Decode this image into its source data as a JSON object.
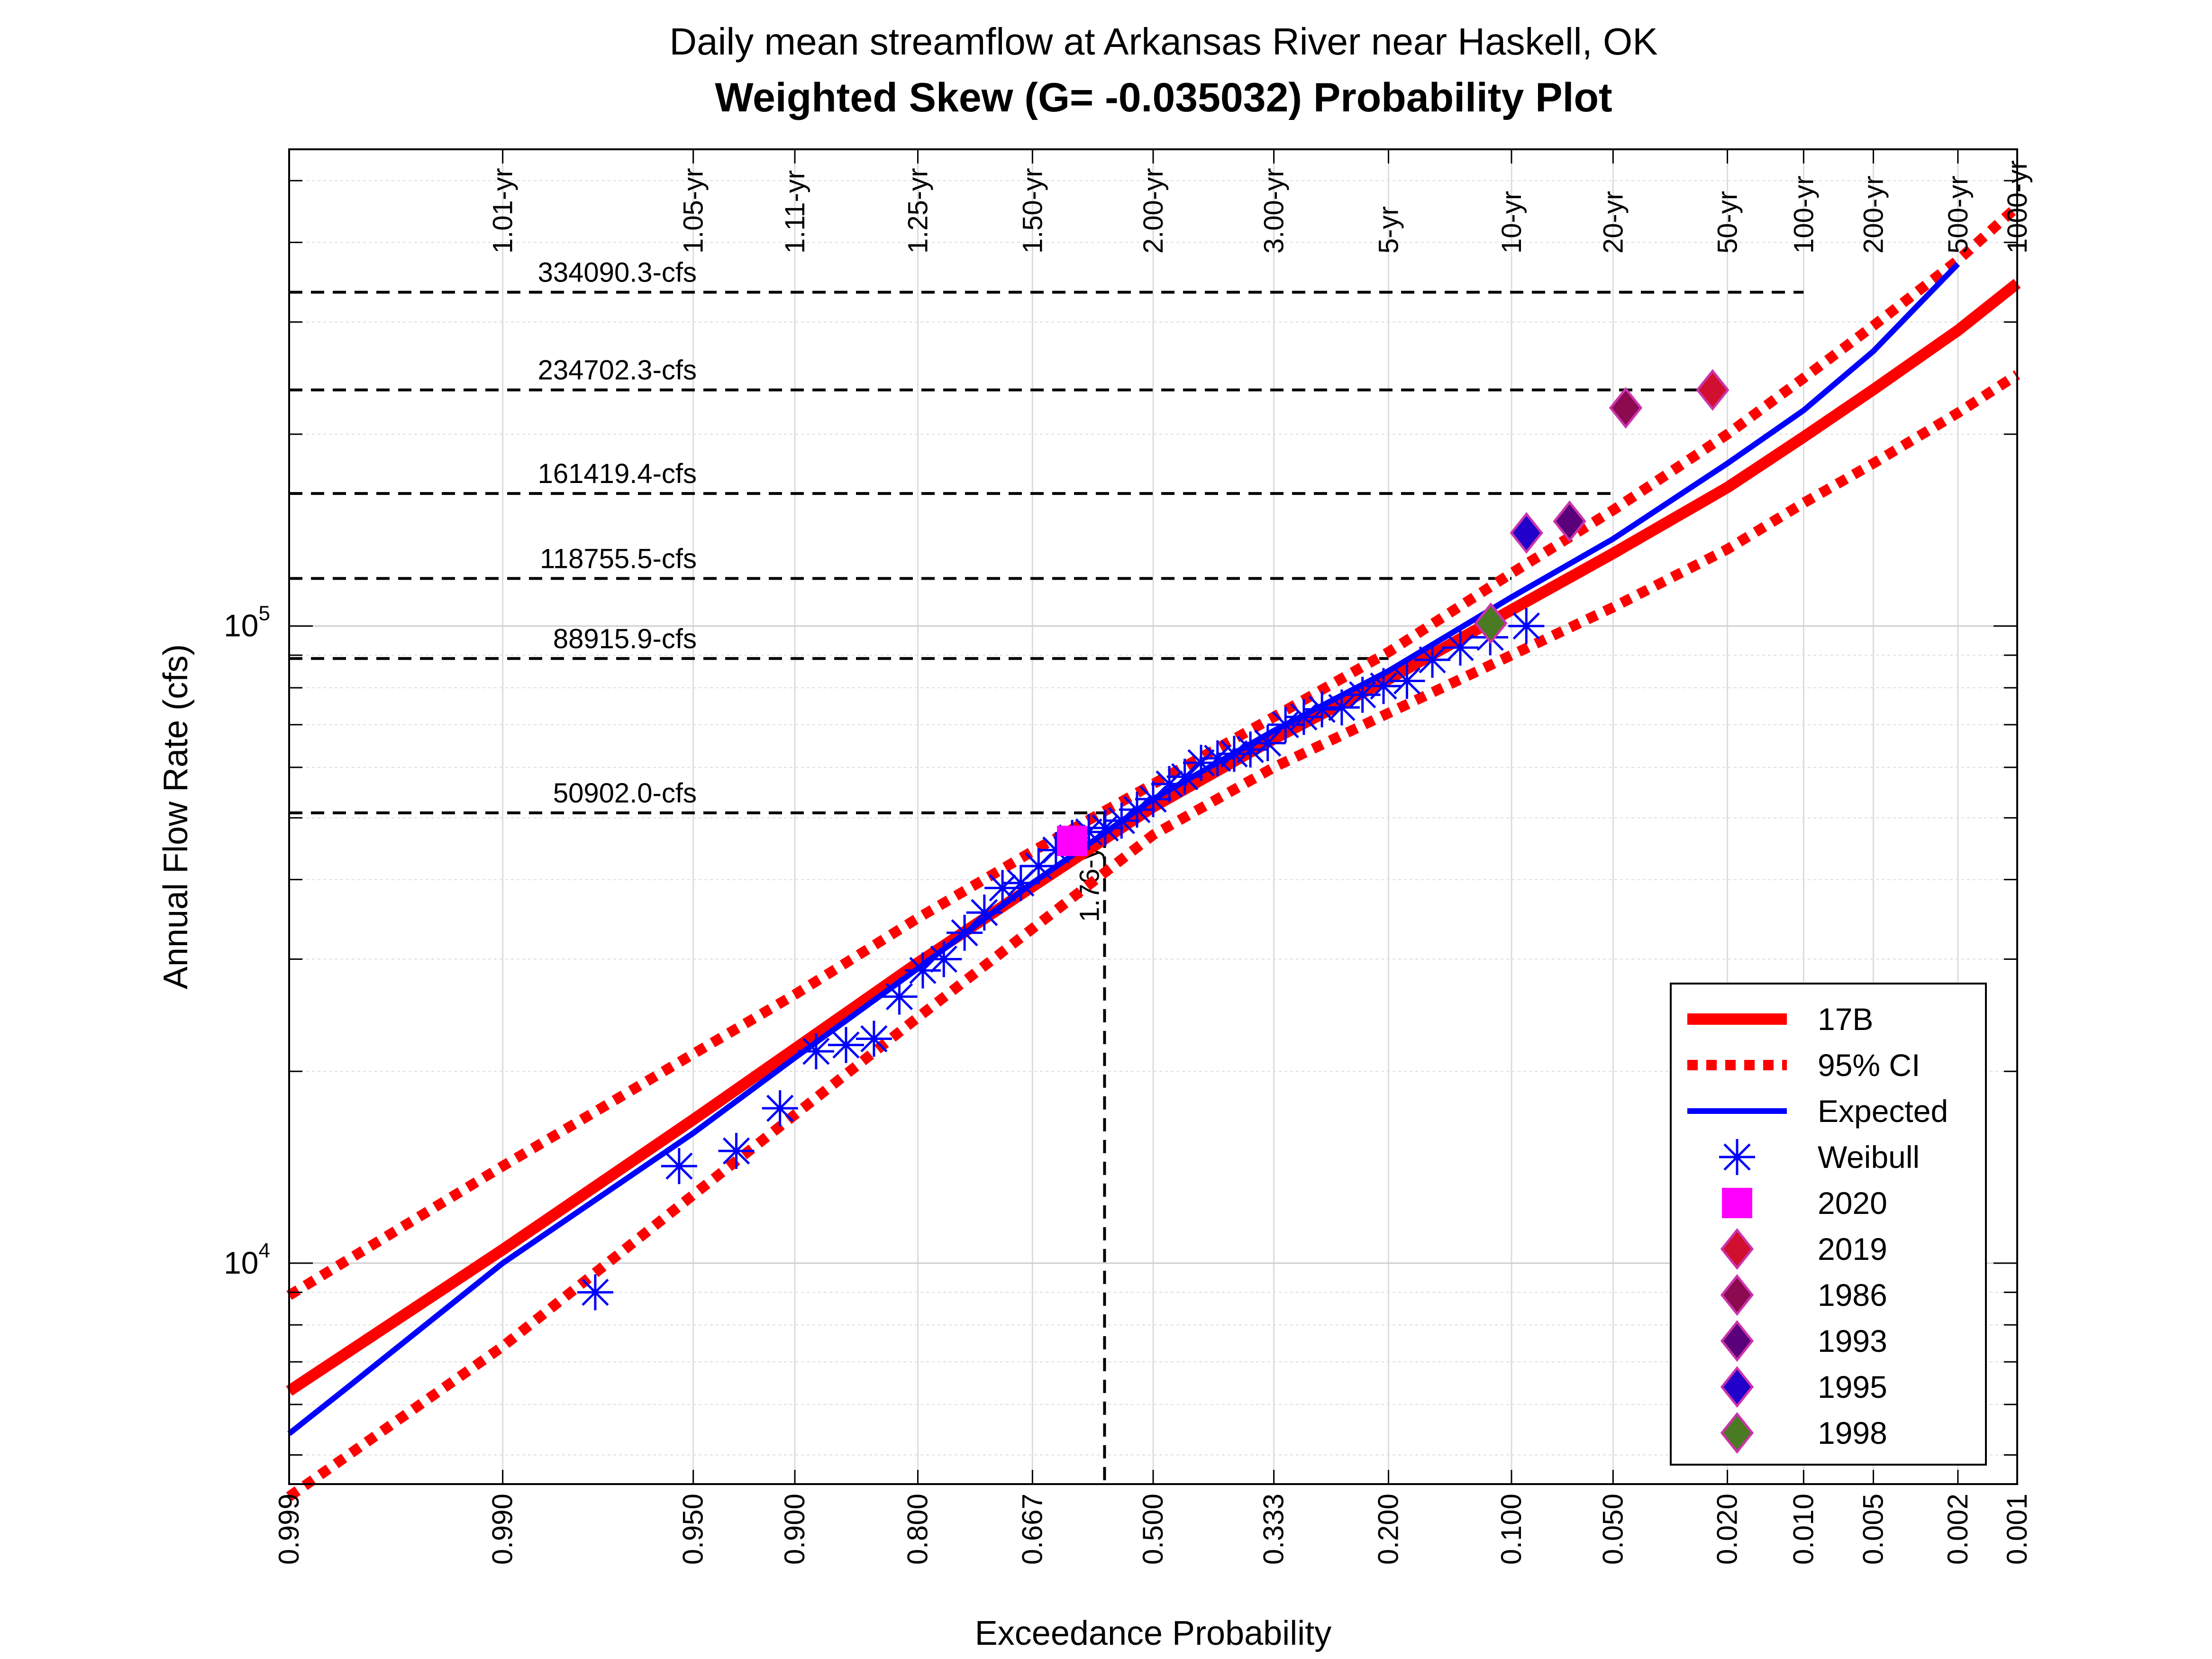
{
  "chart_data": {
    "type": "scatter",
    "title": "Daily mean streamflow at Arkansas River near Haskell, OK",
    "subtitle": "Weighted Skew (G= -0.035032) Probability Plot",
    "xlabel": "Exceedance Probability",
    "ylabel": "Annual Flow Rate (cfs)",
    "x_scale": "normal-probability, reversed",
    "y_scale": "log",
    "xlim": [
      0.999,
      0.001
    ],
    "ylim": [
      4500,
      560000
    ],
    "x_ticks": [
      "0.999",
      "0.990",
      "0.950",
      "0.900",
      "0.800",
      "0.667",
      "0.500",
      "0.333",
      "0.200",
      "0.100",
      "0.050",
      "0.020",
      "0.010",
      "0.005",
      "0.002",
      "0.001"
    ],
    "y_ticks": [
      {
        "value": 10000,
        "base": "10",
        "exp": "4"
      },
      {
        "value": 100000,
        "base": "10",
        "exp": "5"
      }
    ],
    "return_periods": [
      {
        "p": 0.99,
        "label": "1.01-yr"
      },
      {
        "p": 0.95,
        "label": "1.05-yr"
      },
      {
        "p": 0.9,
        "label": "1.11-yr"
      },
      {
        "p": 0.8,
        "label": "1.25-yr"
      },
      {
        "p": 0.667,
        "label": "1.50-yr"
      },
      {
        "p": 0.5,
        "label": "2.00-yr"
      },
      {
        "p": 0.333,
        "label": "3.00-yr"
      },
      {
        "p": 0.2,
        "label": "5-yr"
      },
      {
        "p": 0.1,
        "label": "10-yr"
      },
      {
        "p": 0.05,
        "label": "20-yr"
      },
      {
        "p": 0.02,
        "label": "50-yr"
      },
      {
        "p": 0.01,
        "label": "100-yr"
      },
      {
        "p": 0.005,
        "label": "200-yr"
      },
      {
        "p": 0.002,
        "label": "500-yr"
      },
      {
        "p": 0.001,
        "label": "1000-yr"
      }
    ],
    "reference_flows": [
      {
        "value": 334090.3,
        "label": "334090.3-cfs",
        "p_end": 0.01
      },
      {
        "value": 234702.3,
        "label": "234702.3-cfs",
        "p_end": 0.02
      },
      {
        "value": 161419.4,
        "label": "161419.4-cfs",
        "p_end": 0.05
      },
      {
        "value": 118755.5,
        "label": "118755.5-cfs",
        "p_end": 0.1
      },
      {
        "value": 88915.9,
        "label": "88915.9-cfs",
        "p_end": 0.2
      },
      {
        "value": 50902.0,
        "label": "50902.0-cfs",
        "p_end": 0.569
      }
    ],
    "highlight": {
      "p": 0.569,
      "value": 50902.0,
      "label": "1.76-yr"
    },
    "series": [
      {
        "name": "17B",
        "kind": "line",
        "color": "#ff0000",
        "style": "solid",
        "x": [
          0.999,
          0.99,
          0.95,
          0.9,
          0.8,
          0.667,
          0.5,
          0.333,
          0.2,
          0.1,
          0.05,
          0.02,
          0.01,
          0.005,
          0.002,
          0.001
        ],
        "y": [
          6300,
          10500,
          16800,
          21700,
          29600,
          39000,
          52000,
          66500,
          82500,
          106000,
          130000,
          165000,
          198000,
          235000,
          291000,
          345000
        ]
      },
      {
        "name": "95% CI",
        "kind": "line",
        "color": "#ff0000",
        "style": "dotted",
        "x": [
          0.999,
          0.99,
          0.95,
          0.9,
          0.8,
          0.667,
          0.5,
          0.333,
          0.2,
          0.1,
          0.05,
          0.02,
          0.01,
          0.005,
          0.002,
          0.001
        ],
        "y": [
          8900,
          14200,
          21300,
          26400,
          34800,
          44300,
          56500,
          72000,
          91000,
          121000,
          152000,
          200000,
          245000,
          296000,
          375000,
          455000
        ]
      },
      {
        "name": "",
        "kind": "line",
        "color": "#ff0000",
        "style": "dotted",
        "x": [
          0.999,
          0.99,
          0.95,
          0.9,
          0.8,
          0.667,
          0.5,
          0.333,
          0.2,
          0.1,
          0.05,
          0.02,
          0.01,
          0.005,
          0.002,
          0.001
        ],
        "y": [
          4300,
          7400,
          12800,
          17100,
          24300,
          33500,
          47000,
          60000,
          73000,
          90000,
          107000,
          132000,
          156000,
          180000,
          216000,
          248000
        ]
      },
      {
        "name": "Expected",
        "kind": "line",
        "color": "#0000ff",
        "style": "solid",
        "x": [
          0.999,
          0.998,
          0.99,
          0.95,
          0.9,
          0.8,
          0.667,
          0.5,
          0.333,
          0.2,
          0.1,
          0.05,
          0.02,
          0.01,
          0.005,
          0.002
        ],
        "y": [
          5400,
          6400,
          10000,
          16000,
          21000,
          29000,
          39500,
          53500,
          68500,
          85000,
          111000,
          137000,
          180000,
          218000,
          270000,
          370000
        ]
      },
      {
        "name": "Weibull",
        "kind": "marker",
        "marker": "asterisk",
        "color": "#0000ff",
        "x": [
          0.977,
          0.955,
          0.932,
          0.909,
          0.886,
          0.864,
          0.841,
          0.818,
          0.795,
          0.773,
          0.75,
          0.727,
          0.705,
          0.682,
          0.659,
          0.636,
          0.614,
          0.591,
          0.568,
          0.545,
          0.523,
          0.5,
          0.477,
          0.455,
          0.432,
          0.409,
          0.386,
          0.364,
          0.341,
          0.318,
          0.295,
          0.273,
          0.25,
          0.227,
          0.205,
          0.182,
          0.159,
          0.136,
          0.114,
          0.091
        ],
        "y": [
          9000,
          14200,
          15000,
          17500,
          21500,
          22000,
          22500,
          26200,
          28800,
          30000,
          33000,
          35500,
          38800,
          39500,
          42000,
          44500,
          46500,
          47500,
          48200,
          49500,
          51500,
          53500,
          56500,
          58000,
          61000,
          62000,
          63000,
          64000,
          65500,
          70000,
          72000,
          74000,
          74500,
          78000,
          80500,
          82000,
          88500,
          92500,
          96000,
          100000
        ]
      },
      {
        "name": "2020",
        "kind": "marker",
        "marker": "square",
        "color": "#ff00ff",
        "x": [
          0.614
        ],
        "y": [
          46000
        ]
      },
      {
        "name": "2019",
        "kind": "marker",
        "marker": "diamond",
        "color": "#d0102e",
        "x": [
          0.0227
        ],
        "y": [
          234702.3
        ]
      },
      {
        "name": "1986",
        "kind": "marker",
        "marker": "diamond",
        "color": "#8b0a50",
        "x": [
          0.0455
        ],
        "y": [
          220000
        ]
      },
      {
        "name": "1993",
        "kind": "marker",
        "marker": "diamond",
        "color": "#5a007a",
        "x": [
          0.0682
        ],
        "y": [
          146000
        ]
      },
      {
        "name": "1995",
        "kind": "marker",
        "marker": "diamond",
        "color": "#2200cc",
        "x": [
          0.0909
        ],
        "y": [
          140000
        ]
      },
      {
        "name": "1998",
        "kind": "marker",
        "marker": "diamond",
        "color": "#4a7a22",
        "x": [
          0.1136
        ],
        "y": [
          101000
        ]
      }
    ],
    "legend": {
      "position": "bottom-right",
      "entries": [
        {
          "label": "17B",
          "kind": "solid",
          "color": "#ff0000"
        },
        {
          "label": "95% CI",
          "kind": "dotted",
          "color": "#ff0000"
        },
        {
          "label": "Expected",
          "kind": "solid",
          "color": "#0000ff"
        },
        {
          "label": "Weibull",
          "kind": "asterisk",
          "color": "#0000ff"
        },
        {
          "label": "2020",
          "kind": "square",
          "color": "#ff00ff"
        },
        {
          "label": "2019",
          "kind": "diamond",
          "color": "#d0102e"
        },
        {
          "label": "1986",
          "kind": "diamond",
          "color": "#8b0a50"
        },
        {
          "label": "1993",
          "kind": "diamond",
          "color": "#5a007a"
        },
        {
          "label": "1995",
          "kind": "diamond",
          "color": "#2200cc"
        },
        {
          "label": "1998",
          "kind": "diamond",
          "color": "#4a7a22"
        }
      ]
    },
    "grid": true
  }
}
